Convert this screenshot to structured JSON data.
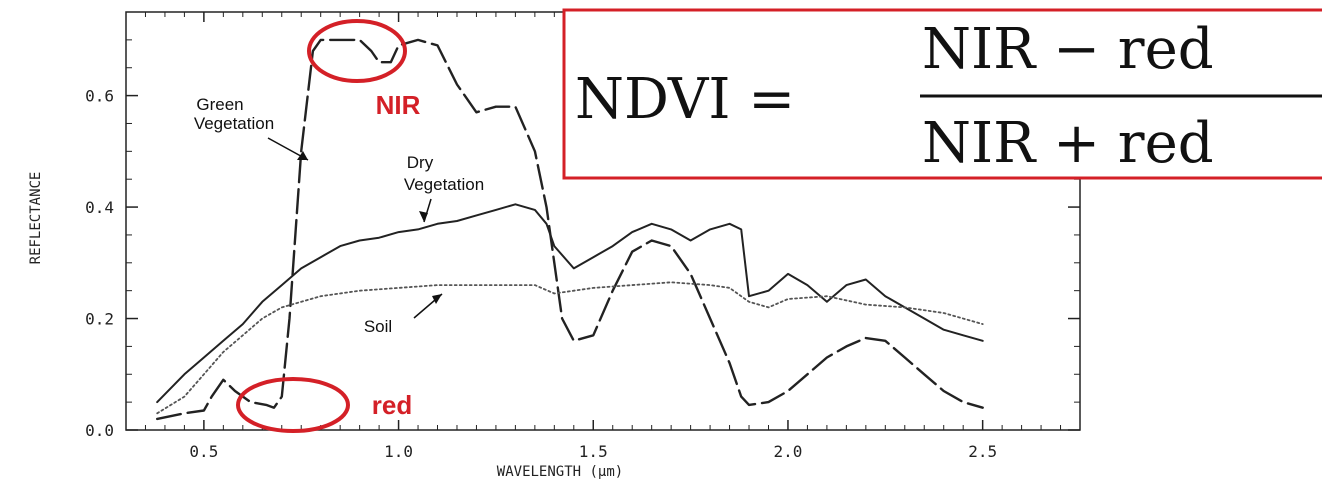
{
  "chart_data": {
    "type": "line",
    "xlabel": "WAVELENGTH (µm)",
    "ylabel": "REFLECTANCE",
    "xlim": [
      0.3,
      2.75
    ],
    "ylim": [
      0.0,
      0.75
    ],
    "x_ticks": [
      "0.5",
      "1.0",
      "1.5",
      "2.0",
      "2.5"
    ],
    "y_ticks": [
      "0.0",
      "0.2",
      "0.4",
      "0.6"
    ],
    "grid": false,
    "series": [
      {
        "name": "Green Vegetation",
        "style": "dashed",
        "color": "#222222",
        "x": [
          0.38,
          0.45,
          0.5,
          0.52,
          0.55,
          0.58,
          0.62,
          0.66,
          0.68,
          0.7,
          0.72,
          0.75,
          0.78,
          0.8,
          0.85,
          0.9,
          0.93,
          0.95,
          0.98,
          1.0,
          1.05,
          1.1,
          1.15,
          1.2,
          1.25,
          1.3,
          1.35,
          1.38,
          1.4,
          1.42,
          1.45,
          1.5,
          1.55,
          1.6,
          1.65,
          1.7,
          1.75,
          1.8,
          1.85,
          1.88,
          1.9,
          1.95,
          2.0,
          2.05,
          2.1,
          2.15,
          2.2,
          2.25,
          2.3,
          2.35,
          2.4,
          2.45,
          2.5
        ],
        "y": [
          0.02,
          0.03,
          0.035,
          0.06,
          0.09,
          0.07,
          0.05,
          0.045,
          0.04,
          0.06,
          0.2,
          0.5,
          0.68,
          0.7,
          0.7,
          0.7,
          0.68,
          0.66,
          0.66,
          0.69,
          0.7,
          0.69,
          0.62,
          0.57,
          0.58,
          0.58,
          0.5,
          0.4,
          0.3,
          0.2,
          0.16,
          0.17,
          0.25,
          0.32,
          0.34,
          0.33,
          0.28,
          0.2,
          0.12,
          0.06,
          0.045,
          0.05,
          0.07,
          0.1,
          0.13,
          0.15,
          0.165,
          0.16,
          0.13,
          0.1,
          0.07,
          0.05,
          0.04
        ]
      },
      {
        "name": "Dry Vegetation",
        "style": "solid",
        "color": "#222222",
        "x": [
          0.38,
          0.45,
          0.5,
          0.55,
          0.6,
          0.65,
          0.7,
          0.75,
          0.8,
          0.85,
          0.9,
          0.95,
          1.0,
          1.05,
          1.1,
          1.15,
          1.2,
          1.25,
          1.3,
          1.35,
          1.38,
          1.4,
          1.45,
          1.5,
          1.55,
          1.6,
          1.65,
          1.7,
          1.75,
          1.8,
          1.85,
          1.88,
          1.9,
          1.95,
          2.0,
          2.05,
          2.1,
          2.15,
          2.2,
          2.25,
          2.3,
          2.35,
          2.4,
          2.45,
          2.5
        ],
        "y": [
          0.05,
          0.1,
          0.13,
          0.16,
          0.19,
          0.23,
          0.26,
          0.29,
          0.31,
          0.33,
          0.34,
          0.345,
          0.355,
          0.36,
          0.37,
          0.375,
          0.385,
          0.395,
          0.405,
          0.395,
          0.37,
          0.33,
          0.29,
          0.31,
          0.33,
          0.355,
          0.37,
          0.36,
          0.34,
          0.36,
          0.37,
          0.36,
          0.24,
          0.25,
          0.28,
          0.26,
          0.23,
          0.26,
          0.27,
          0.24,
          0.22,
          0.2,
          0.18,
          0.17,
          0.16
        ]
      },
      {
        "name": "Soil",
        "style": "dotted",
        "color": "#555555",
        "x": [
          0.38,
          0.45,
          0.5,
          0.55,
          0.6,
          0.65,
          0.7,
          0.8,
          0.9,
          1.0,
          1.1,
          1.2,
          1.3,
          1.35,
          1.4,
          1.45,
          1.5,
          1.6,
          1.7,
          1.8,
          1.85,
          1.9,
          1.95,
          2.0,
          2.1,
          2.2,
          2.3,
          2.4,
          2.5
        ],
        "y": [
          0.03,
          0.06,
          0.1,
          0.14,
          0.17,
          0.2,
          0.22,
          0.24,
          0.25,
          0.255,
          0.26,
          0.26,
          0.26,
          0.26,
          0.245,
          0.25,
          0.255,
          0.26,
          0.265,
          0.26,
          0.255,
          0.23,
          0.22,
          0.235,
          0.24,
          0.225,
          0.22,
          0.21,
          0.19
        ]
      }
    ]
  },
  "annotations": {
    "green_vegetation_line1": "Green",
    "green_vegetation_line2": "Vegetation",
    "dry_vegetation_line1": "Dry",
    "dry_vegetation_line2": "Vegetation",
    "soil": "Soil",
    "nir": "NIR",
    "red": "red",
    "highlight_color": "#d42027"
  },
  "formula": {
    "lhs": "NDVI =",
    "numerator": "NIR − red",
    "denominator": "NIR + red"
  }
}
